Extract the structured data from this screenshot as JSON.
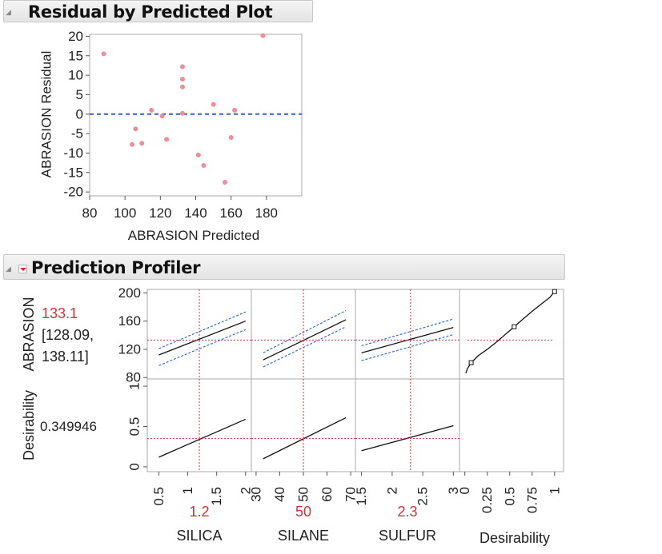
{
  "residual_section": {
    "title": "Residual by Predicted Plot"
  },
  "profiler_section": {
    "title": "Prediction Profiler"
  },
  "chart_data": [
    {
      "type": "scatter",
      "title": "Residual by Predicted Plot",
      "xlabel": "ABRASION Predicted",
      "ylabel": "ABRASION Residual",
      "xlim": [
        80,
        200
      ],
      "ylim": [
        -21,
        20.5
      ],
      "xticks": [
        80,
        100,
        120,
        140,
        160,
        180
      ],
      "yticks": [
        20,
        15,
        10,
        5,
        0,
        -5,
        -10,
        -15,
        -20
      ],
      "reference_line": {
        "y": 0,
        "style": "dashed",
        "color": "#2f5fd0"
      },
      "point_color": "#ef8d98",
      "points": [
        {
          "x": 88,
          "y": 15.5
        },
        {
          "x": 104,
          "y": -7.8
        },
        {
          "x": 106,
          "y": -3.8
        },
        {
          "x": 109.5,
          "y": -7.5
        },
        {
          "x": 115,
          "y": 1
        },
        {
          "x": 121,
          "y": -0.5
        },
        {
          "x": 123.5,
          "y": -6.5
        },
        {
          "x": 132.5,
          "y": 12.2
        },
        {
          "x": 132.5,
          "y": 9
        },
        {
          "x": 132.5,
          "y": 7
        },
        {
          "x": 132.5,
          "y": 0.2
        },
        {
          "x": 141.5,
          "y": -10.5
        },
        {
          "x": 144.5,
          "y": -13.2
        },
        {
          "x": 150,
          "y": 2.5
        },
        {
          "x": 156.5,
          "y": -17.5
        },
        {
          "x": 160,
          "y": -6
        },
        {
          "x": 162,
          "y": 1
        },
        {
          "x": 178,
          "y": 20.2
        }
      ]
    },
    {
      "type": "line",
      "title": "Prediction Profiler",
      "response": {
        "name": "ABRASION",
        "value": "133.1",
        "ci_line1": "[128.09,",
        "ci_line2": "138.11]",
        "ylim": [
          78,
          205
        ],
        "yticks": [
          80,
          120,
          160,
          200
        ]
      },
      "desirability": {
        "name": "Desirability",
        "value": "0.349946",
        "ylim": [
          -0.06,
          1.09
        ],
        "yticks": [
          0,
          0.5,
          1
        ],
        "ytick_labels": [
          "0",
          "0.5",
          "1"
        ]
      },
      "factors": [
        {
          "name": "SILICA",
          "current": 1.2,
          "current_label": "1.2",
          "xlim": [
            0.3,
            2.1
          ],
          "xticks": [
            0.5,
            1,
            1.5,
            2
          ],
          "xtick_labels": [
            "0.5",
            "1",
            "1.5",
            "2"
          ],
          "curve": {
            "x": [
              0.5,
              2
            ],
            "y": [
              112,
              160
            ]
          },
          "ci_upper": {
            "x": [
              0.5,
              2
            ],
            "y": [
              121,
              173
            ]
          },
          "ci_lower": {
            "x": [
              0.5,
              2
            ],
            "y": [
              97,
              148
            ]
          },
          "desirability_curve": {
            "x": [
              0.5,
              2
            ],
            "y": [
              0.12,
              0.59
            ]
          }
        },
        {
          "name": "SILANE",
          "current": 50,
          "current_label": "50",
          "xlim": [
            28,
            72
          ],
          "xticks": [
            30,
            40,
            50,
            60,
            70
          ],
          "xtick_labels": [
            "30",
            "40",
            "50",
            "60",
            "70"
          ],
          "curve": {
            "x": [
              33,
              68
            ],
            "y": [
              105,
              162
            ]
          },
          "ci_upper": {
            "x": [
              33,
              68
            ],
            "y": [
              115,
              175
            ]
          },
          "ci_lower": {
            "x": [
              33,
              68
            ],
            "y": [
              95,
              152
            ]
          },
          "desirability_curve": {
            "x": [
              33,
              68
            ],
            "y": [
              0.1,
              0.61
            ]
          }
        },
        {
          "name": "SULFUR",
          "current": 2.3,
          "current_label": "2.3",
          "xlim": [
            1.4,
            3.1
          ],
          "xticks": [
            1.5,
            2,
            2.5,
            3
          ],
          "xtick_labels": [
            "1.5",
            "2",
            "2.5",
            "3"
          ],
          "curve": {
            "x": [
              1.5,
              3
            ],
            "y": [
              115,
              151
            ]
          },
          "ci_upper": {
            "x": [
              1.5,
              3
            ],
            "y": [
              125,
              163
            ]
          },
          "ci_lower": {
            "x": [
              1.5,
              3
            ],
            "y": [
              104,
              141
            ]
          },
          "desirability_curve": {
            "x": [
              1.5,
              3
            ],
            "y": [
              0.2,
              0.51
            ]
          }
        }
      ],
      "desirability_function": {
        "name": "Desirability",
        "xlim": [
          -0.06,
          1.1
        ],
        "xticks": [
          0,
          0.25,
          0.5,
          0.75,
          1
        ],
        "xtick_labels": [
          "0",
          "0.25",
          "0.5",
          "0.75",
          "1"
        ],
        "curve": {
          "x": [
            0.01,
            0.03,
            0.07,
            0.15,
            0.25,
            0.35,
            0.45,
            0.55,
            0.65,
            0.75,
            0.85,
            0.95,
            1.0
          ],
          "y": [
            86,
            93,
            101,
            111,
            120,
            130,
            141,
            152,
            163,
            174,
            184,
            194,
            202
          ]
        },
        "handles": [
          {
            "x": 0.07,
            "y": 101
          },
          {
            "x": 0.55,
            "y": 152
          },
          {
            "x": 1.0,
            "y": 202
          }
        ]
      },
      "reference_color": "#d0343c",
      "ci_color": "#2f6fe0"
    }
  ]
}
